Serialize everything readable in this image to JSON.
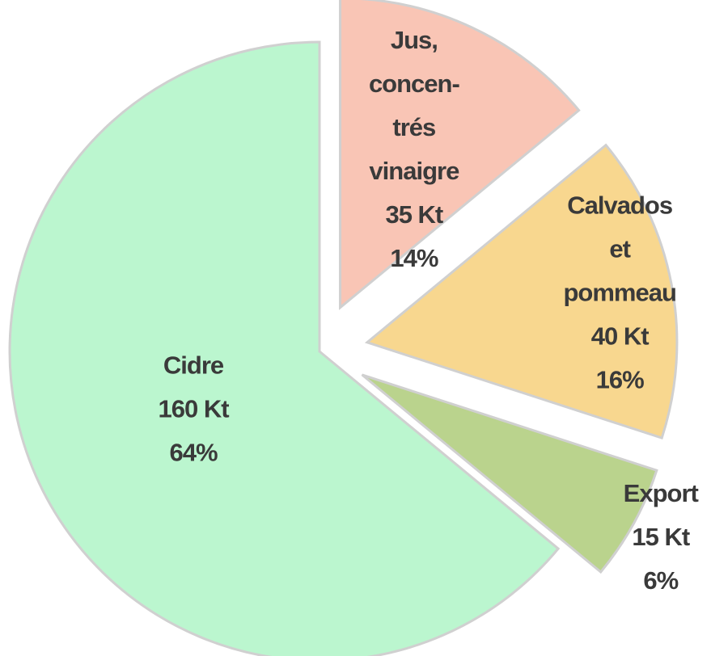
{
  "chart_data": {
    "type": "pie",
    "categories": [
      [
        "Jus,",
        "concen-",
        "trés",
        "vinaigre"
      ],
      [
        "Calvados",
        "et",
        "pommeau"
      ],
      [
        "Export"
      ],
      [
        "Cidre"
      ]
    ],
    "quantities": [
      {
        "value": 35,
        "label": "35 Kt"
      },
      {
        "value": 40,
        "label": "40 Kt"
      },
      {
        "value": 15,
        "label": "15 Kt"
      },
      {
        "value": 160,
        "label": "160 Kt"
      }
    ],
    "values": [
      14,
      16,
      6,
      64
    ],
    "value_labels": [
      "14%",
      "16%",
      "6%",
      "64%"
    ],
    "colors": [
      "#f9c5b5",
      "#f8d78f",
      "#bad38d",
      "#bbf6cf"
    ]
  }
}
